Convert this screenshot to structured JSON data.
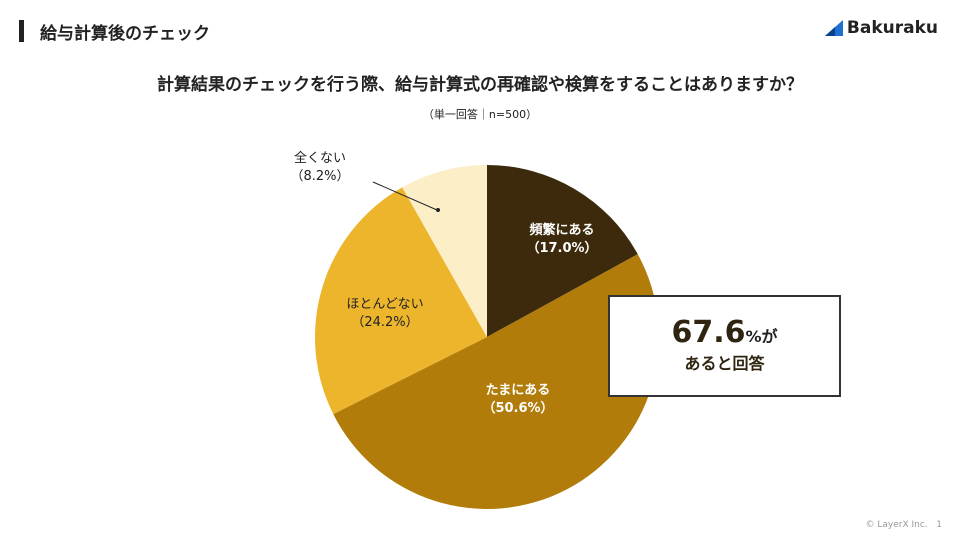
{
  "header": {
    "title": "給与計算後のチェック",
    "brand": "Bakuraku"
  },
  "chart_data": {
    "type": "pie",
    "title": "計算結果のチェックを行う際、給与計算式の再確認や検算をすることはありますか？",
    "subtitle": "（単一回答｜n=500）",
    "categories": [
      "頻繁にある",
      "たまにある",
      "ほとんどない",
      "全くない"
    ],
    "values": [
      17.0,
      50.6,
      24.2,
      8.2
    ],
    "value_labels": [
      "（17.0%）",
      "（50.6%）",
      "（24.2%）",
      "（8.2%）"
    ],
    "colors": [
      "#3d2a0c",
      "#b27c0a",
      "#ecb52c",
      "#fcefc8"
    ]
  },
  "callout": {
    "value": "67.6",
    "unit": "%が",
    "line2": "あると回答"
  },
  "footer": {
    "copyright": "© LayerX Inc.",
    "page": "1"
  }
}
